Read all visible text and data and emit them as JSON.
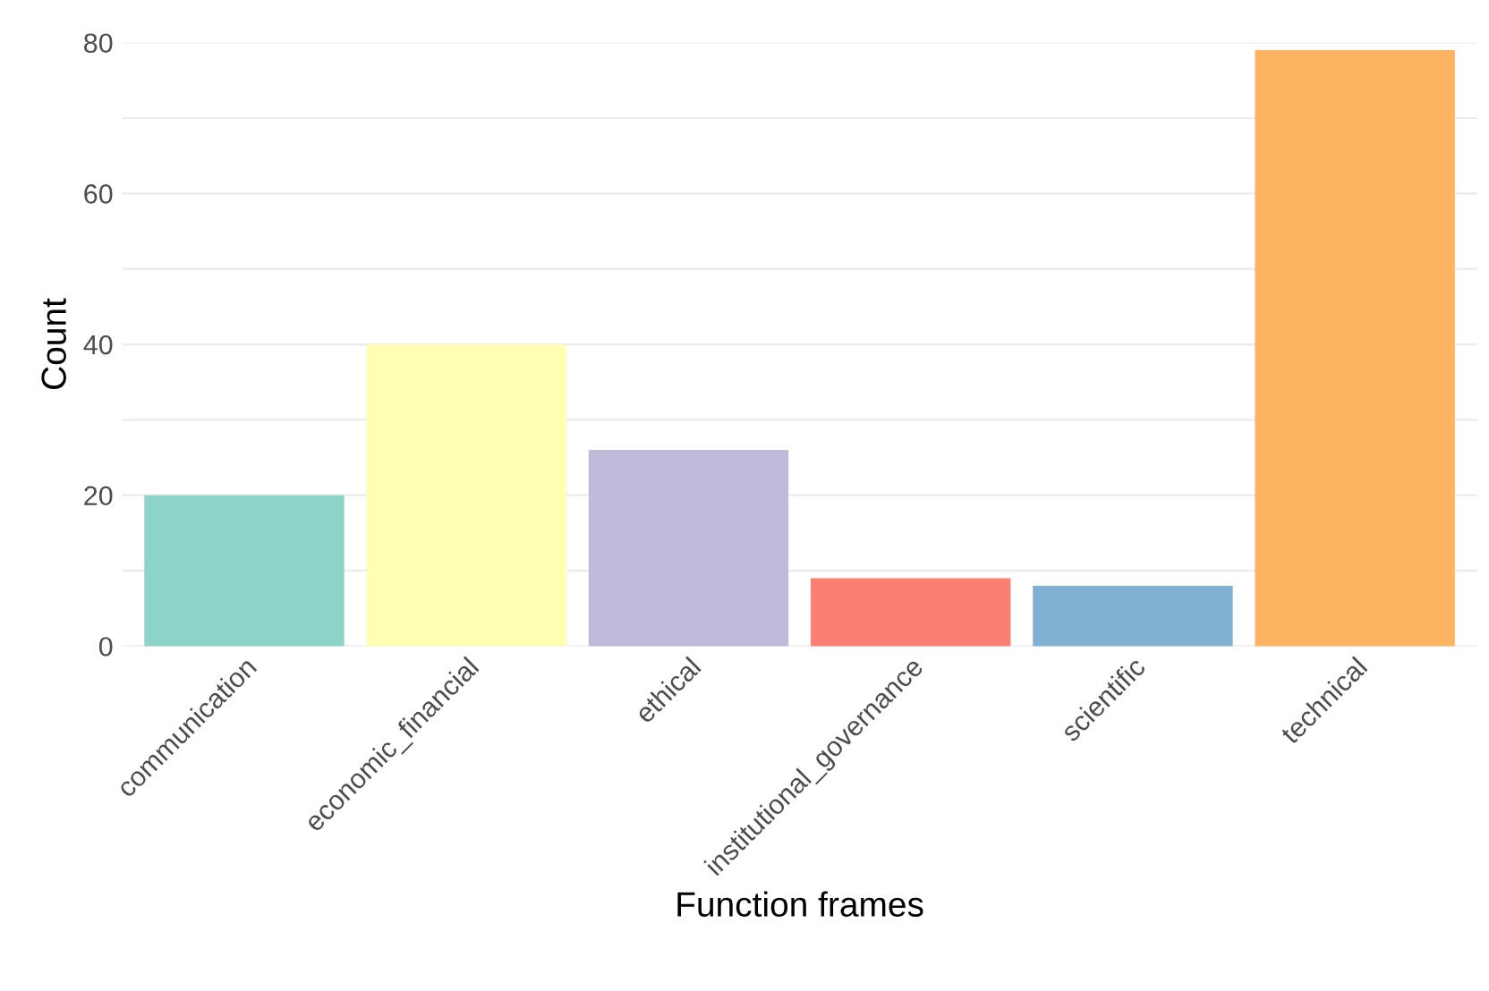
{
  "chart_data": {
    "type": "bar",
    "xlabel": "Function frames",
    "ylabel": "Count",
    "categories": [
      "communication",
      "economic_financial",
      "ethical",
      "institutional_governance",
      "scientific",
      "technical"
    ],
    "values": [
      20,
      40,
      26,
      9,
      8,
      79
    ],
    "colors": [
      "#8dd3c7",
      "#ffffb3",
      "#bebada",
      "#fb8072",
      "#80b1d3",
      "#fdb462"
    ],
    "ylim": [
      0,
      80
    ],
    "yticks": [
      0,
      {
        "value": 10,
        "label": null
      },
      20,
      {
        "value": 30,
        "label": null
      },
      40,
      {
        "value": 50,
        "label": null
      },
      60,
      {
        "value": 70,
        "label": null
      },
      80
    ],
    "grid": "y",
    "legend": false
  }
}
